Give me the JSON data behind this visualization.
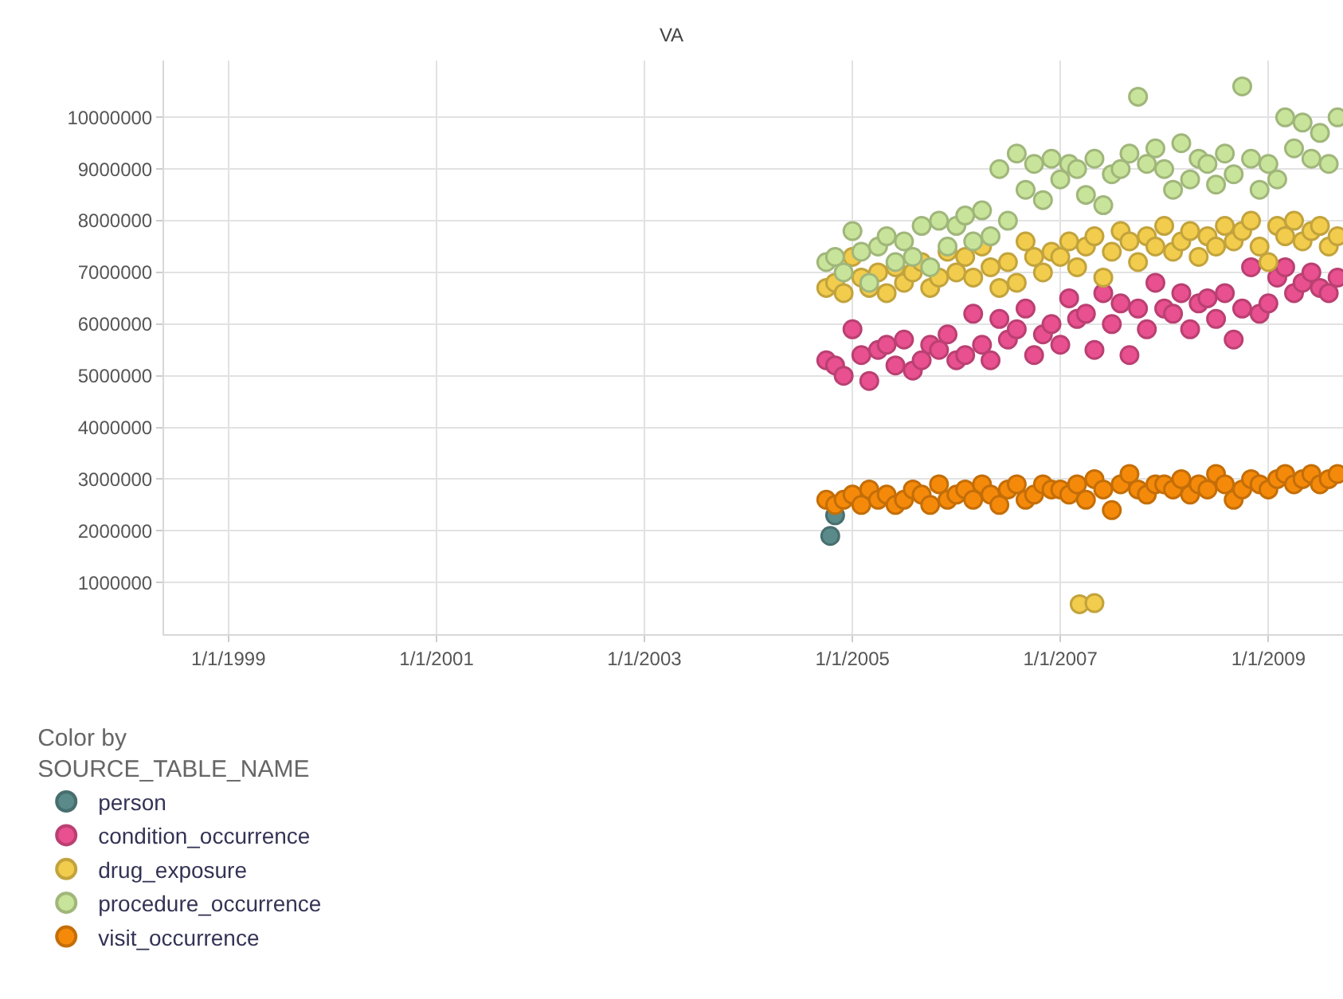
{
  "chart_data": {
    "type": "scatter",
    "title": "VA",
    "legend_title": "Color by\nSOURCE_TABLE_NAME",
    "legend": "bottom left",
    "grid": true,
    "marker": "circle",
    "xlim": [
      "1998-05-20",
      "2009-09-20"
    ],
    "xticks": [
      {
        "value": "1999-01-01",
        "label": "1/1/1999"
      },
      {
        "value": "2001-01-01",
        "label": "1/1/2001"
      },
      {
        "value": "2003-01-01",
        "label": "1/1/2003"
      },
      {
        "value": "2005-01-01",
        "label": "1/1/2005"
      },
      {
        "value": "2007-01-01",
        "label": "1/1/2007"
      },
      {
        "value": "2009-01-01",
        "label": "1/1/2009"
      }
    ],
    "ylim": [
      0,
      11100000
    ],
    "yticks": [
      1000000,
      2000000,
      3000000,
      4000000,
      5000000,
      6000000,
      7000000,
      8000000,
      9000000,
      10000000
    ],
    "series": [
      {
        "name": "person",
        "color": "#5a8a8a",
        "x": [
          "2004-10-15",
          "2004-11-01"
        ],
        "values": [
          1900000,
          2300000
        ]
      },
      {
        "name": "condition_occurrence",
        "color": "#e8508f",
        "x": [
          "2004-10",
          "2004-11",
          "2004-12",
          "2005-01",
          "2005-02",
          "2005-03",
          "2005-04",
          "2005-05",
          "2005-06",
          "2005-07",
          "2005-08",
          "2005-09",
          "2005-10",
          "2005-11",
          "2005-12",
          "2006-01",
          "2006-02",
          "2006-03",
          "2006-04",
          "2006-05",
          "2006-06",
          "2006-07",
          "2006-08",
          "2006-09",
          "2006-10",
          "2006-11",
          "2006-12",
          "2007-01",
          "2007-02",
          "2007-03",
          "2007-04",
          "2007-05",
          "2007-06",
          "2007-07",
          "2007-08",
          "2007-09",
          "2007-10",
          "2007-11",
          "2007-12",
          "2008-01",
          "2008-02",
          "2008-03",
          "2008-04",
          "2008-05",
          "2008-06",
          "2008-07",
          "2008-08",
          "2008-09",
          "2008-10",
          "2008-11",
          "2008-12",
          "2009-01",
          "2009-02",
          "2009-03",
          "2009-04",
          "2009-05",
          "2009-06",
          "2009-07",
          "2009-08",
          "2009-09"
        ],
        "values": [
          5300000,
          5200000,
          5000000,
          5900000,
          5400000,
          4900000,
          5500000,
          5600000,
          5200000,
          5700000,
          5100000,
          5300000,
          5600000,
          5500000,
          5800000,
          5300000,
          5400000,
          6200000,
          5600000,
          5300000,
          6100000,
          5700000,
          5900000,
          6300000,
          5400000,
          5800000,
          6000000,
          5600000,
          6500000,
          6100000,
          6200000,
          5500000,
          6600000,
          6000000,
          6400000,
          5400000,
          6300000,
          5900000,
          6800000,
          6300000,
          6200000,
          6600000,
          5900000,
          6400000,
          6500000,
          6100000,
          6600000,
          5700000,
          6300000,
          7100000,
          6200000,
          6400000,
          6900000,
          7100000,
          6600000,
          6800000,
          7000000,
          6700000,
          6600000,
          6900000
        ]
      },
      {
        "name": "drug_exposure",
        "color": "#f2cc4c",
        "x": [
          "2004-10",
          "2004-11",
          "2004-12",
          "2005-01",
          "2005-02",
          "2005-03",
          "2005-04",
          "2005-05",
          "2005-06",
          "2005-07",
          "2005-08",
          "2005-09",
          "2005-10",
          "2005-11",
          "2005-12",
          "2006-01",
          "2006-02",
          "2006-03",
          "2006-04",
          "2006-05",
          "2006-06",
          "2006-07",
          "2006-08",
          "2006-09",
          "2006-10",
          "2006-11",
          "2006-12",
          "2007-01",
          "2007-02",
          "2007-03",
          "2007-04",
          "2007-05",
          "2007-06",
          "2007-07",
          "2007-08",
          "2007-09",
          "2007-10",
          "2007-11",
          "2007-12",
          "2008-01",
          "2008-02",
          "2008-03",
          "2008-04",
          "2008-05",
          "2008-06",
          "2008-07",
          "2008-08",
          "2008-09",
          "2008-10",
          "2008-11",
          "2008-12",
          "2009-01",
          "2009-02",
          "2009-03",
          "2009-04",
          "2009-05",
          "2009-06",
          "2009-07",
          "2009-08",
          "2009-09",
          "2007-03-10",
          "2007-05-01"
        ],
        "values": [
          6700000,
          6800000,
          6600000,
          7300000,
          6900000,
          6700000,
          7000000,
          6600000,
          7100000,
          6800000,
          7000000,
          7200000,
          6700000,
          6900000,
          7400000,
          7000000,
          7300000,
          6900000,
          7500000,
          7100000,
          6700000,
          7200000,
          6800000,
          7600000,
          7300000,
          7000000,
          7400000,
          7300000,
          7600000,
          7100000,
          7500000,
          7700000,
          6900000,
          7400000,
          7800000,
          7600000,
          7200000,
          7700000,
          7500000,
          7900000,
          7400000,
          7600000,
          7800000,
          7300000,
          7700000,
          7500000,
          7900000,
          7600000,
          7800000,
          8000000,
          7500000,
          7200000,
          7900000,
          7700000,
          8000000,
          7600000,
          7800000,
          7900000,
          7500000,
          7700000,
          580000,
          600000
        ]
      },
      {
        "name": "procedure_occurrence",
        "color": "#c8e49a",
        "x": [
          "2004-10",
          "2004-11",
          "2004-12",
          "2005-01",
          "2005-02",
          "2005-03",
          "2005-04",
          "2005-05",
          "2005-06",
          "2005-07",
          "2005-08",
          "2005-09",
          "2005-10",
          "2005-11",
          "2005-12",
          "2006-01",
          "2006-02",
          "2006-03",
          "2006-04",
          "2006-05",
          "2006-06",
          "2006-07",
          "2006-08",
          "2006-09",
          "2006-10",
          "2006-11",
          "2006-12",
          "2007-01",
          "2007-02",
          "2007-03",
          "2007-04",
          "2007-05",
          "2007-06",
          "2007-07",
          "2007-08",
          "2007-09",
          "2007-10",
          "2007-11",
          "2007-12",
          "2008-01",
          "2008-02",
          "2008-03",
          "2008-04",
          "2008-05",
          "2008-06",
          "2008-07",
          "2008-08",
          "2008-09",
          "2008-10",
          "2008-11",
          "2008-12",
          "2009-01",
          "2009-02",
          "2009-03",
          "2009-04",
          "2009-05",
          "2009-06",
          "2009-07",
          "2009-08",
          "2009-09"
        ],
        "values": [
          7200000,
          7300000,
          7000000,
          7800000,
          7400000,
          6800000,
          7500000,
          7700000,
          7200000,
          7600000,
          7300000,
          7900000,
          7100000,
          8000000,
          7500000,
          7900000,
          8100000,
          7600000,
          8200000,
          7700000,
          9000000,
          8000000,
          9300000,
          8600000,
          9100000,
          8400000,
          9200000,
          8800000,
          9100000,
          9000000,
          8500000,
          9200000,
          8300000,
          8900000,
          9000000,
          9300000,
          10400000,
          9100000,
          9400000,
          9000000,
          8600000,
          9500000,
          8800000,
          9200000,
          9100000,
          8700000,
          9300000,
          8900000,
          10600000,
          9200000,
          8600000,
          9100000,
          8800000,
          10000000,
          9400000,
          9900000,
          9200000,
          9700000,
          9100000,
          10000000
        ]
      },
      {
        "name": "visit_occurrence",
        "color": "#f58a0a",
        "x": [
          "2004-10",
          "2004-11",
          "2004-12",
          "2005-01",
          "2005-02",
          "2005-03",
          "2005-04",
          "2005-05",
          "2005-06",
          "2005-07",
          "2005-08",
          "2005-09",
          "2005-10",
          "2005-11",
          "2005-12",
          "2006-01",
          "2006-02",
          "2006-03",
          "2006-04",
          "2006-05",
          "2006-06",
          "2006-07",
          "2006-08",
          "2006-09",
          "2006-10",
          "2006-11",
          "2006-12",
          "2007-01",
          "2007-02",
          "2007-03",
          "2007-04",
          "2007-05",
          "2007-06",
          "2007-07",
          "2007-08",
          "2007-09",
          "2007-10",
          "2007-11",
          "2007-12",
          "2008-01",
          "2008-02",
          "2008-03",
          "2008-04",
          "2008-05",
          "2008-06",
          "2008-07",
          "2008-08",
          "2008-09",
          "2008-10",
          "2008-11",
          "2008-12",
          "2009-01",
          "2009-02",
          "2009-03",
          "2009-04",
          "2009-05",
          "2009-06",
          "2009-07",
          "2009-08",
          "2009-09"
        ],
        "values": [
          2600000,
          2500000,
          2600000,
          2700000,
          2500000,
          2800000,
          2600000,
          2700000,
          2500000,
          2600000,
          2800000,
          2700000,
          2500000,
          2900000,
          2600000,
          2700000,
          2800000,
          2600000,
          2900000,
          2700000,
          2500000,
          2800000,
          2900000,
          2600000,
          2700000,
          2900000,
          2800000,
          2800000,
          2700000,
          2900000,
          2600000,
          3000000,
          2800000,
          2400000,
          2900000,
          3100000,
          2800000,
          2700000,
          2900000,
          2900000,
          2800000,
          3000000,
          2700000,
          2900000,
          2800000,
          3100000,
          2900000,
          2600000,
          2800000,
          3000000,
          2900000,
          2800000,
          3000000,
          3100000,
          2900000,
          3000000,
          3100000,
          2900000,
          3000000,
          3100000
        ]
      }
    ]
  }
}
